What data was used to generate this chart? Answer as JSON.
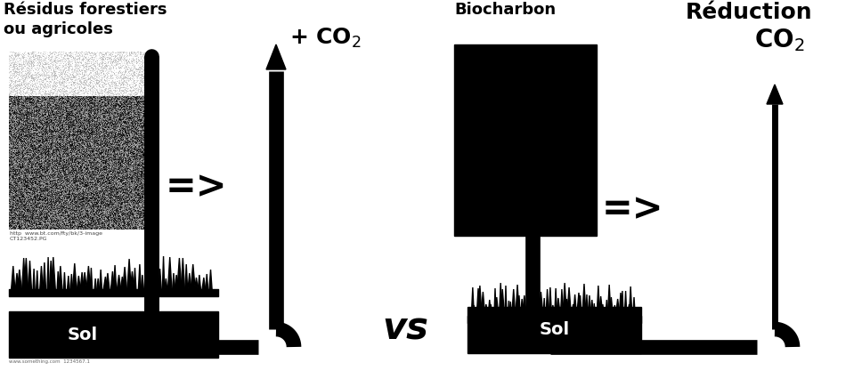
{
  "bg_color": "#ffffff",
  "text_color": "#000000",
  "title_left1": "Résidus forestiers",
  "title_left2": "ou agricoles",
  "title_center": "Biocharbon",
  "title_right": "Réduction",
  "co2_left": "+ CO$_2$",
  "co2_right": "CO$_2$",
  "vs_text": "vs",
  "sol_text": "Sol",
  "figsize": [
    9.68,
    4.26
  ],
  "dpi": 100,
  "pipe_lw": 12,
  "arrow_lw": 6
}
